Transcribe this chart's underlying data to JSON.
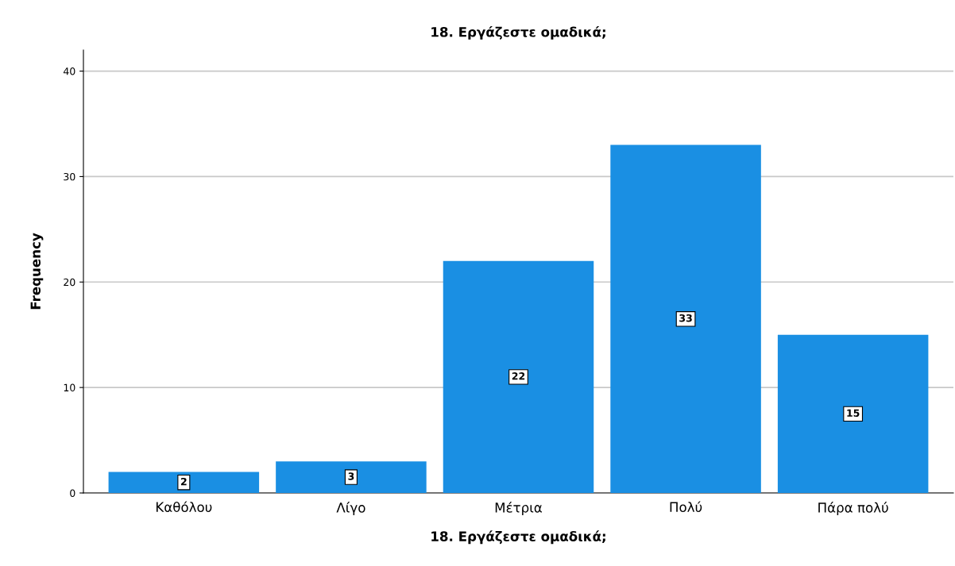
{
  "chart_data": {
    "type": "bar",
    "title": "18. Εργάζεστε ομαδικά;",
    "xlabel": "18. Εργάζεστε ομαδικά;",
    "ylabel": "Frequency",
    "categories": [
      "Καθόλου",
      "Λίγο",
      "Μέτρια",
      "Πολύ",
      "Πάρα πολύ"
    ],
    "values": [
      2,
      3,
      22,
      33,
      15
    ],
    "color": "#1a8fe3",
    "ylim": [
      0,
      42
    ],
    "yticks": [
      0,
      10,
      20,
      30,
      40
    ],
    "grid": "y",
    "data_labels": true
  }
}
